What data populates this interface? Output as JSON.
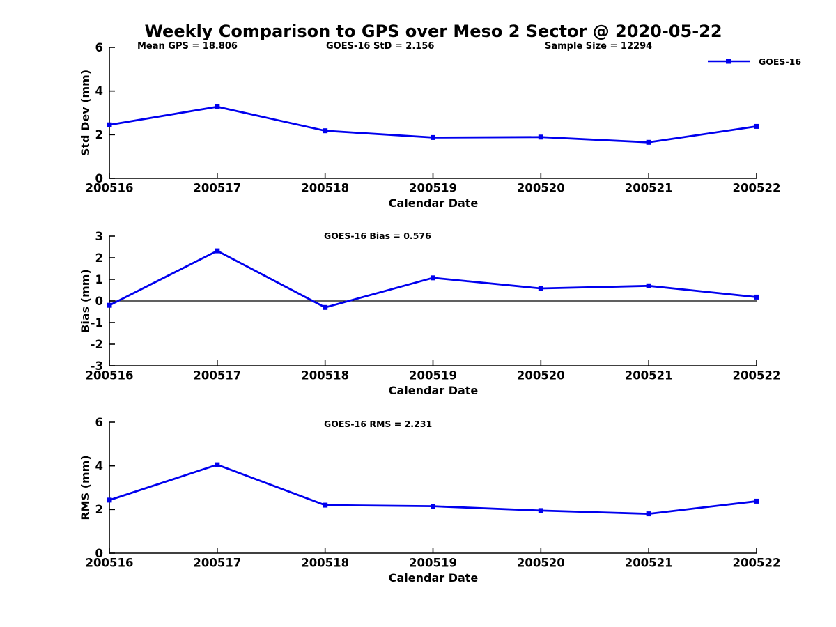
{
  "figure": {
    "title": "Weekly Comparison to GPS over Meso 2 Sector @ 2020-05-22",
    "header_annotations": [
      "Mean GPS = 18.806",
      "GOES-16 StD = 2.156",
      "Sample Size = 12294"
    ],
    "legend": {
      "label": "GOES-16"
    },
    "colors": {
      "series": "#0000EE",
      "axis": "#000000",
      "text": "#000000",
      "background": "#ffffff"
    }
  },
  "chart_data": [
    {
      "type": "line",
      "name": "std_dev",
      "categories": [
        "200516",
        "200517",
        "200518",
        "200519",
        "200520",
        "200521",
        "200522"
      ],
      "series": [
        {
          "name": "GOES-16",
          "values": [
            2.45,
            3.28,
            2.18,
            1.87,
            1.89,
            1.65,
            2.38
          ]
        }
      ],
      "xlabel": "Calendar Date",
      "ylabel": "Std Dev (mm)",
      "ylim": [
        0,
        6
      ],
      "yticks": [
        6,
        4,
        2,
        0
      ],
      "grid": false,
      "zero_line": false,
      "marker": "square",
      "legend_position": "top-right",
      "annotation": ""
    },
    {
      "type": "line",
      "name": "bias",
      "categories": [
        "200516",
        "200517",
        "200518",
        "200519",
        "200520",
        "200521",
        "200522"
      ],
      "series": [
        {
          "name": "GOES-16",
          "values": [
            -0.2,
            2.32,
            -0.3,
            1.07,
            0.58,
            0.7,
            0.18
          ]
        }
      ],
      "xlabel": "Calendar Date",
      "ylabel": "Bias (mm)",
      "ylim": [
        -3,
        3
      ],
      "yticks": [
        3,
        2,
        1,
        0,
        -1,
        -2,
        -3
      ],
      "grid": false,
      "zero_line": true,
      "marker": "square",
      "legend_position": "none",
      "annotation": "GOES-16 Bias  = 0.576"
    },
    {
      "type": "line",
      "name": "rms",
      "categories": [
        "200516",
        "200517",
        "200518",
        "200519",
        "200520",
        "200521",
        "200522"
      ],
      "series": [
        {
          "name": "GOES-16",
          "values": [
            2.43,
            4.05,
            2.2,
            2.15,
            1.95,
            1.8,
            2.38
          ]
        }
      ],
      "xlabel": "Calendar Date",
      "ylabel": "RMS (mm)",
      "ylim": [
        0,
        6
      ],
      "yticks": [
        6,
        4,
        2,
        0
      ],
      "grid": false,
      "zero_line": false,
      "marker": "square",
      "legend_position": "none",
      "annotation": "GOES-16 RMS = 2.231"
    }
  ]
}
